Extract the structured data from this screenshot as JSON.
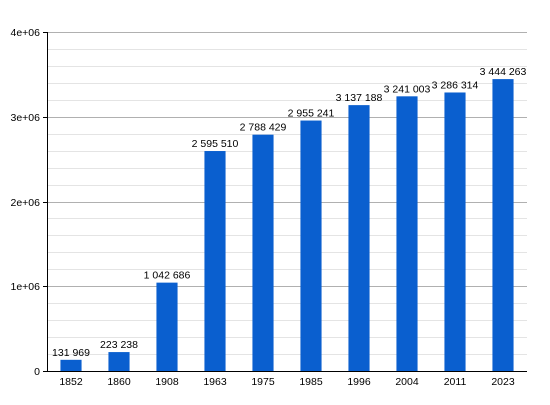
{
  "chart_data": {
    "type": "bar",
    "title": "",
    "xlabel": "",
    "ylabel": "",
    "categories": [
      "1852",
      "1860",
      "1908",
      "1963",
      "1975",
      "1985",
      "1996",
      "2004",
      "2011",
      "2023"
    ],
    "values": [
      131969,
      223238,
      1042686,
      2595510,
      2788429,
      2955241,
      3137188,
      3241003,
      3286314,
      3444263
    ],
    "data_labels": [
      "131 969",
      "223 238",
      "1 042 686",
      "2 595 510",
      "2 788 429",
      "2 955 241",
      "3 137 188",
      "3 241 003",
      "3 286 314",
      "3 444 263"
    ],
    "ylim": [
      0,
      4000000
    ],
    "y_ticks": [
      {
        "value": 0,
        "label": "0"
      },
      {
        "value": 1000000,
        "label": "1e+06"
      },
      {
        "value": 2000000,
        "label": "2e+06"
      },
      {
        "value": 3000000,
        "label": "3e+06"
      },
      {
        "value": 4000000,
        "label": "4e+06"
      }
    ],
    "y_minor_step": 200000,
    "grid": true,
    "legend": "none",
    "colors": {
      "bar": "#0a5fcf",
      "major_grid": "#b0b0b0",
      "minor_grid": "#e4e4e4",
      "axis": "#000000",
      "text": "#000000"
    }
  }
}
